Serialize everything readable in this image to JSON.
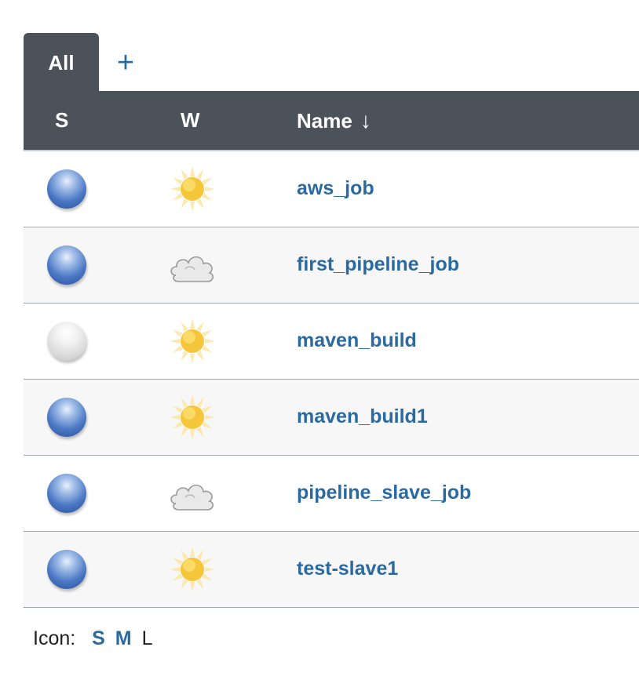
{
  "tabs": {
    "active_label": "All",
    "add_label": "+"
  },
  "table": {
    "headers": {
      "status": "S",
      "weather": "W",
      "name": "Name",
      "sort_indicator": "↓"
    },
    "rows": [
      {
        "name": "aws_job",
        "status": "blue",
        "weather": "sunny"
      },
      {
        "name": "first_pipeline_job",
        "status": "blue",
        "weather": "cloudy"
      },
      {
        "name": "maven_build",
        "status": "grey",
        "weather": "sunny"
      },
      {
        "name": "maven_build1",
        "status": "blue",
        "weather": "sunny"
      },
      {
        "name": "pipeline_slave_job",
        "status": "blue",
        "weather": "cloudy"
      },
      {
        "name": "test-slave1",
        "status": "blue",
        "weather": "sunny"
      }
    ]
  },
  "icon_legend": {
    "label": "Icon:",
    "sizes": [
      "S",
      "M",
      "L"
    ]
  },
  "colors": {
    "header_bg": "#4b525a",
    "link": "#2a6aa0"
  }
}
